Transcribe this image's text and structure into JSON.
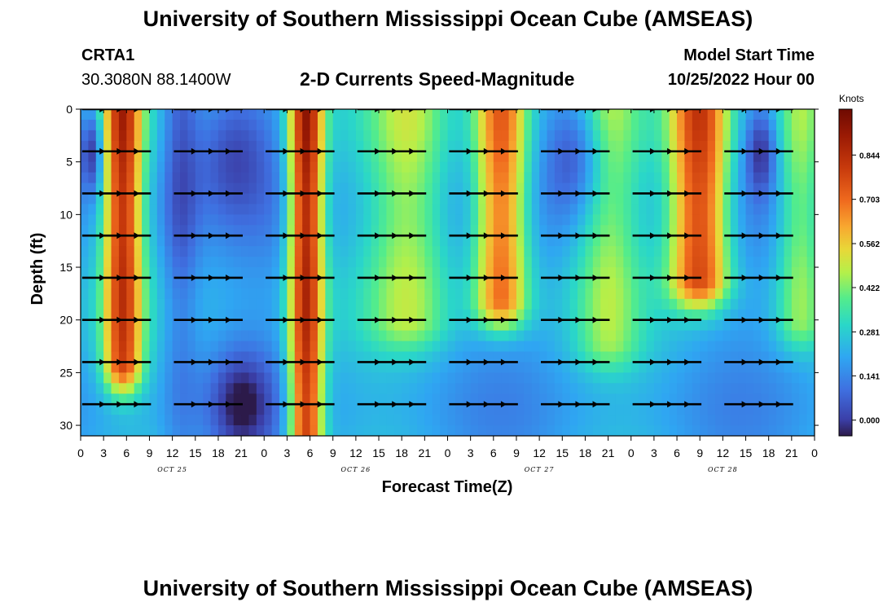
{
  "header": {
    "title_top": "University of Southern Mississippi Ocean Cube (AMSEAS)",
    "title_bottom": "University of Southern Mississippi Ocean Cube (AMSEAS)",
    "station": "CRTA1",
    "coordinates": "30.3080N  88.1400W",
    "subtitle": "2-D Currents Speed-Magnitude",
    "model_start_label": "Model Start Time",
    "model_start_value": "10/25/2022 Hour 00"
  },
  "chart_data": {
    "type": "heatmap",
    "title": "2-D Currents Speed-Magnitude",
    "xlabel": "Forecast Time(Z)",
    "ylabel": "Depth (ft)",
    "x_unit": "hours since 10/25/2022 00Z",
    "xlim": [
      0,
      96
    ],
    "ylim": [
      0,
      31
    ],
    "x_ticks": [
      0,
      3,
      6,
      9,
      12,
      15,
      18,
      21,
      24,
      27,
      30,
      33,
      36,
      39,
      42,
      45,
      48,
      51,
      54,
      57,
      60,
      63,
      66,
      69,
      72,
      75,
      78,
      81,
      84,
      87,
      90,
      93,
      96
    ],
    "x_tick_labels": [
      "0",
      "3",
      "6",
      "9",
      "12",
      "15",
      "18",
      "21",
      "0",
      "3",
      "6",
      "9",
      "12",
      "15",
      "18",
      "21",
      "0",
      "3",
      "6",
      "9",
      "12",
      "15",
      "18",
      "21",
      "0",
      "3",
      "6",
      "9",
      "12",
      "15",
      "18",
      "21",
      "0"
    ],
    "day_labels": [
      {
        "label": "OCT 25",
        "hour": 12
      },
      {
        "label": "OCT 26",
        "hour": 36
      },
      {
        "label": "OCT 27",
        "hour": 60
      },
      {
        "label": "OCT 28",
        "hour": 84
      }
    ],
    "y_ticks": [
      0,
      5,
      10,
      15,
      20,
      25,
      30
    ],
    "y_tick_labels": [
      "0",
      "5",
      "10",
      "15",
      "20",
      "25",
      "30"
    ],
    "colorbar": {
      "label": "Knots",
      "min": -0.05,
      "max": 0.99,
      "ticks": [
        "0.000",
        "0.141",
        "0.281",
        "0.422",
        "0.562",
        "0.703",
        "0.844"
      ],
      "tick_values": [
        0.0,
        0.141,
        0.281,
        0.422,
        0.562,
        0.703,
        0.844
      ]
    },
    "depth_levels": [
      0,
      4,
      8,
      12,
      16,
      20,
      24,
      28
    ],
    "speed_hotspots": [
      {
        "hour": 5.5,
        "depth_range": [
          0,
          24
        ],
        "speed": 0.9
      },
      {
        "hour": 29.5,
        "depth_range": [
          0,
          31
        ],
        "speed": 0.95
      },
      {
        "hour": 55,
        "depth_range": [
          0,
          18
        ],
        "speed": 0.85
      },
      {
        "hour": 81,
        "depth_range": [
          0,
          16
        ],
        "speed": 0.9
      }
    ]
  }
}
